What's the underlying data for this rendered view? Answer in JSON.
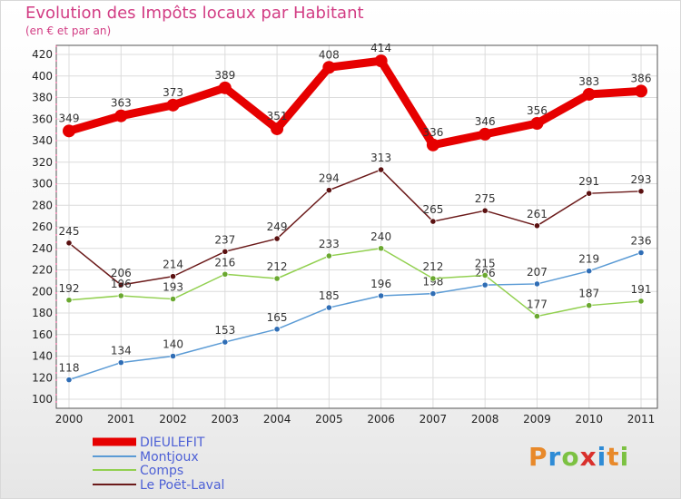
{
  "chart_data": {
    "type": "line",
    "title": "Evolution des Impôts locaux par Habitant",
    "subtitle": "(en € et par an)",
    "xlabel": "",
    "ylabel": "",
    "ylim": [
      100,
      420
    ],
    "yticks": [
      100,
      120,
      140,
      160,
      180,
      200,
      220,
      240,
      260,
      280,
      300,
      320,
      340,
      360,
      380,
      400,
      420
    ],
    "x": [
      "2000",
      "2001",
      "2002",
      "2003",
      "2004",
      "2005",
      "2006",
      "2007",
      "2008",
      "2009",
      "2010",
      "2011"
    ],
    "grid": true,
    "legend_position": "bottom-left",
    "series": [
      {
        "name": "DIEULEFIT",
        "color": "#e60000",
        "values": [
          349,
          363,
          373,
          389,
          351,
          408,
          414,
          336,
          346,
          356,
          383,
          386
        ]
      },
      {
        "name": "Montjoux",
        "color": "#5b9bd5",
        "values": [
          118,
          134,
          140,
          153,
          165,
          185,
          196,
          198,
          206,
          207,
          219,
          236
        ]
      },
      {
        "name": "Comps",
        "color": "#92d050",
        "values": [
          192,
          196,
          193,
          216,
          212,
          233,
          240,
          212,
          215,
          177,
          187,
          191
        ]
      },
      {
        "name": "Le Poët-Laval",
        "color": "#6b1a1a",
        "values": [
          245,
          206,
          214,
          237,
          249,
          294,
          313,
          265,
          275,
          261,
          291,
          293
        ]
      }
    ]
  },
  "logo": {
    "letters": [
      "P",
      "r",
      "o",
      "x",
      "i",
      "t",
      "i"
    ],
    "colors": [
      "#e8892a",
      "#2e8bd6",
      "#7cc142",
      "#d9302c",
      "#2e8bd6",
      "#e8892a",
      "#7cc142"
    ]
  }
}
